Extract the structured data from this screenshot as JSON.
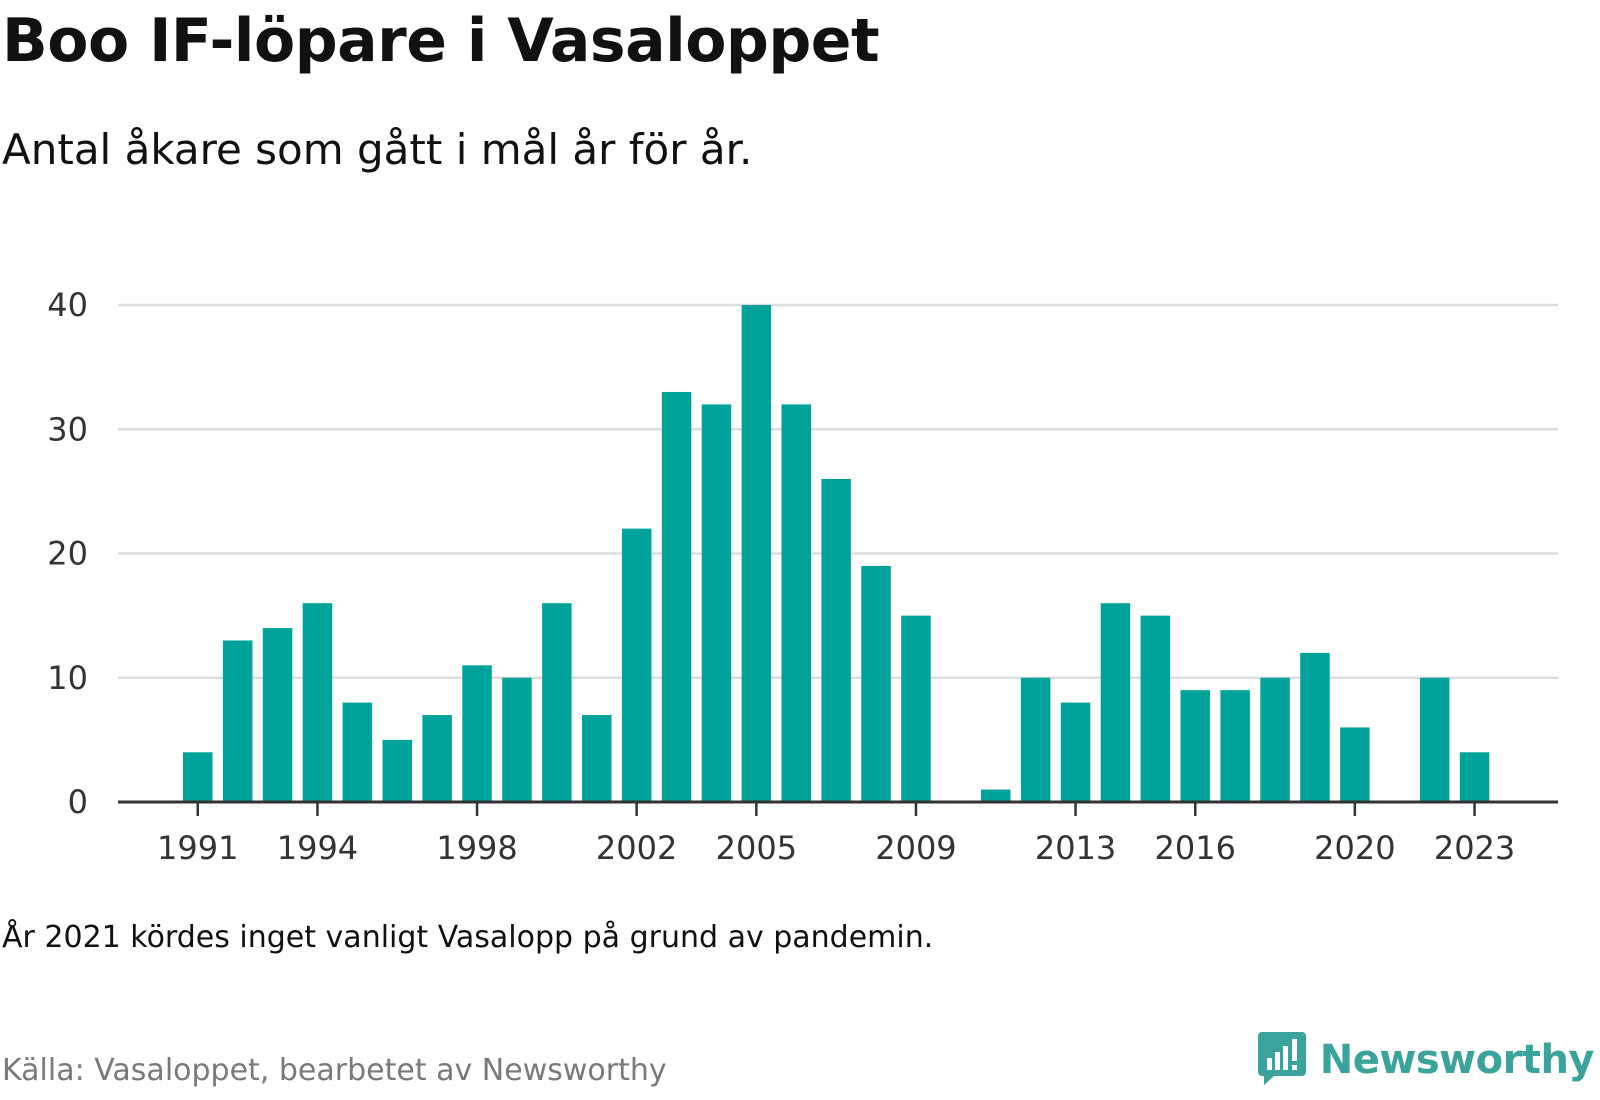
{
  "header": {
    "title": "Boo IF-löpare i Vasaloppet",
    "subtitle": "Antal åkare som gått i mål år för år."
  },
  "footer": {
    "note": "År 2021 kördes inget vanligt Vasalopp på grund av pandemin.",
    "source": "Källa: Vasaloppet, bearbetet av Newsworthy",
    "brand": "Newsworthy",
    "brand_icon": "newsworthy-logo-icon"
  },
  "colors": {
    "bar": "#00a39a",
    "grid": "#dddddd",
    "axis": "#333333",
    "brand": "#3aa39b"
  },
  "chart_data": {
    "type": "bar",
    "title": "Boo IF-löpare i Vasaloppet",
    "subtitle": "Antal åkare som gått i mål år för år.",
    "xlabel": "",
    "ylabel": "",
    "categories": [
      1991,
      1992,
      1993,
      1994,
      1995,
      1996,
      1997,
      1998,
      1999,
      2000,
      2001,
      2002,
      2003,
      2004,
      2005,
      2006,
      2007,
      2008,
      2009,
      2010,
      2011,
      2012,
      2013,
      2014,
      2015,
      2016,
      2017,
      2018,
      2019,
      2020,
      2021,
      2022,
      2023
    ],
    "values": [
      4,
      13,
      14,
      16,
      8,
      5,
      7,
      11,
      10,
      16,
      7,
      22,
      33,
      32,
      40,
      32,
      26,
      19,
      15,
      0,
      1,
      10,
      8,
      16,
      15,
      9,
      9,
      10,
      12,
      6,
      0,
      10,
      4
    ],
    "x_tick_labels": [
      "1991",
      "1994",
      "1998",
      "2002",
      "2005",
      "2009",
      "2013",
      "2016",
      "2020",
      "2023"
    ],
    "y_ticks": [
      0,
      10,
      20,
      30,
      40
    ],
    "ylim": [
      0,
      40
    ],
    "grid": true,
    "legend": "none"
  }
}
